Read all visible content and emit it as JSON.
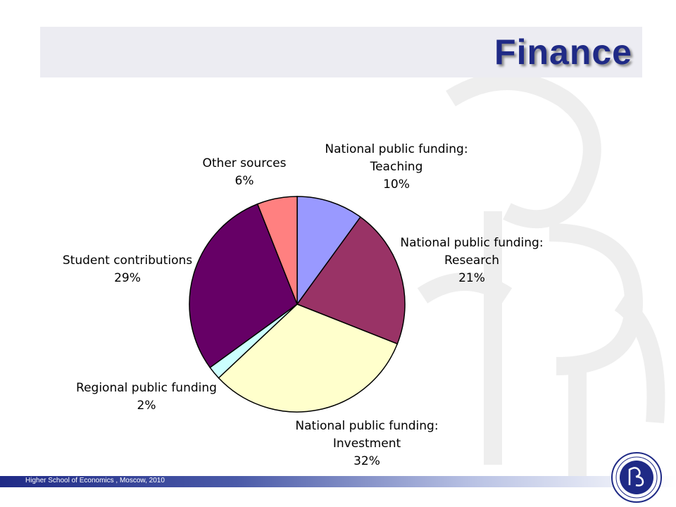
{
  "slide": {
    "title": "Finance",
    "footer": "Higher School of Economics , Moscow, 2010",
    "logo": "hse-seal"
  },
  "colors": {
    "title": "#1f2a86",
    "footer_start": "#1f2a86"
  },
  "chart_data": {
    "type": "pie",
    "title": "",
    "slices": [
      {
        "label": [
          "National public funding:",
          "Teaching"
        ],
        "pct_label": "10%",
        "value": 10,
        "color": "#9999ff"
      },
      {
        "label": [
          "National public funding:",
          "Research"
        ],
        "pct_label": "21%",
        "value": 21,
        "color": "#993366"
      },
      {
        "label": [
          "National public funding:",
          "Investment"
        ],
        "pct_label": "32%",
        "value": 32,
        "color": "#ffffcc"
      },
      {
        "label": [
          "Regional public funding"
        ],
        "pct_label": "2%",
        "value": 2,
        "color": "#ccffff"
      },
      {
        "label": [
          "Student contributions"
        ],
        "pct_label": "29%",
        "value": 29,
        "color": "#660066"
      },
      {
        "label": [
          "Other sources"
        ],
        "pct_label": "6%",
        "value": 6,
        "color": "#ff8080"
      }
    ]
  }
}
